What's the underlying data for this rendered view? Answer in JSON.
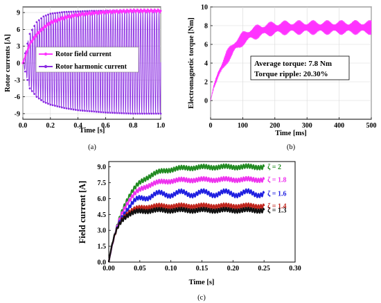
{
  "chart_data": [
    {
      "id": "a",
      "type": "line",
      "caption": "(a)",
      "xlabel": "Time [s]",
      "ylabel": "Rotor currents [A]",
      "xlim": [
        0,
        1.0
      ],
      "ylim": [
        -10,
        10
      ],
      "xticks": [
        "0.0",
        "0.2",
        "0.4",
        "0.6",
        "0.8",
        "1.0"
      ],
      "yticks": [
        "-9",
        "-6",
        "-3",
        "0",
        "3",
        "6",
        "9"
      ],
      "legend": "center-left",
      "series": [
        {
          "name": "Rotor field current",
          "color": "#ff33ff",
          "x": [
            0,
            0.05,
            0.1,
            0.15,
            0.2,
            0.3,
            0.4,
            0.5,
            0.6,
            0.7,
            0.8,
            0.9,
            1.0
          ],
          "y": [
            0,
            3.4,
            5.1,
            6.3,
            7.2,
            8.1,
            8.6,
            8.9,
            9.1,
            9.2,
            9.3,
            9.3,
            9.3
          ]
        },
        {
          "name": "Rotor harmonic current",
          "color": "#8a2be2",
          "envelope_upper": [
            0,
            5.2,
            7.3,
            8.3,
            8.8,
            9.1,
            9.2,
            9.3,
            9.3,
            9.3,
            9.3,
            9.3,
            9.3
          ],
          "envelope_lower": [
            0,
            -4.5,
            -6.0,
            -6.9,
            -7.4,
            -8.0,
            -8.4,
            -8.6,
            -8.8,
            -8.9,
            -9.0,
            -9.0,
            -9.0
          ]
        }
      ]
    },
    {
      "id": "b",
      "type": "line",
      "caption": "(b)",
      "xlabel": "Time [ms]",
      "ylabel": "Electromagnetic torque [Nm]",
      "xlim": [
        0,
        500
      ],
      "ylim": [
        -2,
        10
      ],
      "xticks": [
        "0",
        "100",
        "200",
        "300",
        "400",
        "500"
      ],
      "yticks": [
        "0",
        "2",
        "4",
        "6",
        "8",
        "10"
      ],
      "annotations": [
        "Average torque: 7.8 Nm",
        "Torque ripple: 20.30%"
      ],
      "series": [
        {
          "color": "#ff33ff",
          "x": [
            0,
            10,
            25,
            50,
            75,
            100,
            125,
            150,
            175,
            200,
            250,
            300,
            350,
            400,
            450,
            500
          ],
          "y": [
            0,
            1.5,
            2.9,
            4.6,
            5.8,
            6.6,
            7.1,
            7.4,
            7.6,
            7.7,
            7.8,
            7.8,
            7.8,
            7.8,
            7.8,
            7.8
          ],
          "ripple_amplitude": 0.8
        }
      ]
    },
    {
      "id": "c",
      "type": "line",
      "caption": "(c)",
      "xlabel": "Time [s]",
      "ylabel": "Field current [A]",
      "xlim": [
        0,
        0.3
      ],
      "ylim": [
        0,
        9.5
      ],
      "xticks": [
        "0.00",
        "0.05",
        "0.10",
        "0.15",
        "0.20",
        "0.25",
        "0.30"
      ],
      "yticks": [
        "0.0",
        "1.5",
        "3.0",
        "4.5",
        "6.0",
        "7.5",
        "9.0"
      ],
      "series": [
        {
          "name": "ζ = 2",
          "color": "#228b22",
          "steady": 9.0,
          "tau": 0.028
        },
        {
          "name": "ζ = 1.8",
          "color": "#ee33ee",
          "steady": 7.8,
          "tau": 0.024
        },
        {
          "name": "ζ = 1.6",
          "color": "#1f1fe0",
          "steady": 6.5,
          "tau": 0.02
        },
        {
          "name": "ζ = 1.4",
          "color": "#c0241c",
          "steady": 5.3,
          "tau": 0.015
        },
        {
          "name": "ζ = 1.3",
          "color": "#111111",
          "steady": 4.9,
          "tau": 0.013
        }
      ]
    }
  ]
}
